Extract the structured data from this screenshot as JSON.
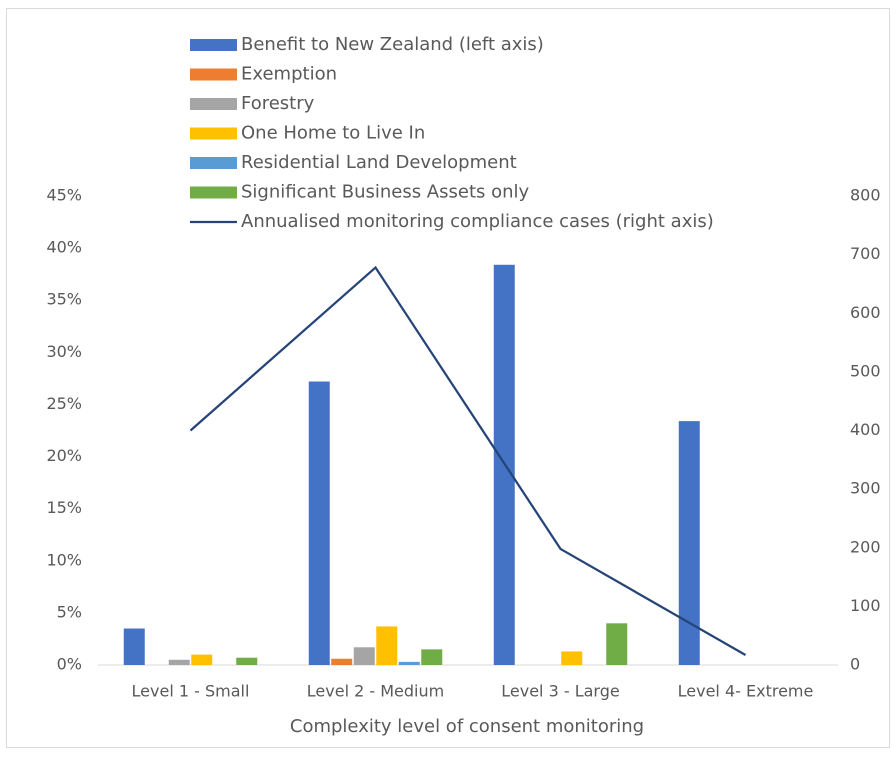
{
  "chart_data": {
    "type": "bar",
    "x_label": "Complexity level of consent monitoring",
    "categories": [
      "Level 1 - Small",
      "Level 2 - Medium",
      "Level 3 - Large",
      "Level 4- Extreme"
    ],
    "series": [
      {
        "name": "Benefit to New Zealand (left axis)",
        "color": "#4472c4",
        "values": [
          3.5,
          27.2,
          38.4,
          23.4
        ]
      },
      {
        "name": "Exemption",
        "color": "#ed7d31",
        "values": [
          0,
          0.6,
          0,
          0
        ]
      },
      {
        "name": "Forestry",
        "color": "#a5a5a5",
        "values": [
          0.5,
          1.7,
          0,
          0
        ]
      },
      {
        "name": "One Home to Live In",
        "color": "#ffc000",
        "values": [
          1.0,
          3.7,
          1.3,
          0
        ]
      },
      {
        "name": "Residential Land Development",
        "color": "#5b9bd5",
        "values": [
          0,
          0.3,
          0,
          0
        ]
      },
      {
        "name": "Significant Business Assets only",
        "color": "#70ad47",
        "values": [
          0.7,
          1.5,
          4.0,
          0
        ]
      },
      {
        "name": "Annualised monitoring compliance cases (right axis)",
        "color": "#264478",
        "type": "line",
        "axis": "y2",
        "values": [
          400,
          678,
          198,
          17
        ]
      }
    ],
    "ylim": [
      0,
      45
    ],
    "yticks": [
      {
        "value": 0,
        "label": "0%"
      },
      {
        "value": 5,
        "label": "5%"
      },
      {
        "value": 10,
        "label": "10%"
      },
      {
        "value": 15,
        "label": "15%"
      },
      {
        "value": 20,
        "label": "20%"
      },
      {
        "value": 25,
        "label": "25%"
      },
      {
        "value": 30,
        "label": "30%"
      },
      {
        "value": 35,
        "label": "35%"
      },
      {
        "value": 40,
        "label": "40%"
      },
      {
        "value": 45,
        "label": "45%"
      }
    ],
    "y2lim": [
      0,
      800
    ],
    "y2ticks": [
      0,
      100,
      200,
      300,
      400,
      500,
      600,
      700,
      800
    ],
    "grid": false,
    "legend": "top"
  }
}
